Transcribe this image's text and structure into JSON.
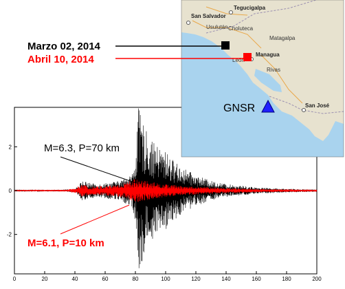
{
  "legend": {
    "black_event": "Marzo 02,  2014",
    "red_event": "Abril   10,  2014",
    "black_color": "#000000",
    "red_color": "#ff0000"
  },
  "map": {
    "station_label": "GNSR",
    "station_color": "#1f1fff",
    "sea_color": "#a9d3ee",
    "land_color": "#e7e2cf",
    "places": [
      {
        "name": "Tegucigalpa",
        "bold": true
      },
      {
        "name": "San Salvador",
        "bold": true
      },
      {
        "name": "Usulután",
        "bold": false
      },
      {
        "name": "Choluteca",
        "bold": false
      },
      {
        "name": "Matagalpa",
        "bold": false
      },
      {
        "name": "Managua",
        "bold": true
      },
      {
        "name": "León",
        "bold": false
      },
      {
        "name": "Rivas",
        "bold": false
      },
      {
        "name": "San José",
        "bold": true
      }
    ]
  },
  "chart_data": {
    "type": "line",
    "title": "",
    "xlabel": "",
    "ylabel": "",
    "xlim": [
      0,
      200
    ],
    "ylim": [
      -3.8,
      3.8
    ],
    "x_ticks": [
      0,
      20,
      40,
      60,
      80,
      100,
      120,
      140,
      160,
      180,
      200
    ],
    "y_ticks": [
      -2,
      0,
      2
    ],
    "grid": false,
    "series": [
      {
        "color": "#000000",
        "annotation": "M=6.3, P=70 km",
        "envelope": {
          "t": [
            0,
            30,
            40,
            45,
            50,
            55,
            60,
            70,
            78,
            80,
            82,
            84,
            86,
            90,
            95,
            100,
            105,
            110,
            115,
            120,
            130,
            140,
            160,
            180,
            200
          ],
          "amp": [
            0.02,
            0.03,
            0.08,
            0.45,
            0.35,
            0.3,
            0.35,
            0.45,
            0.8,
            1.5,
            3.8,
            3.3,
            2.9,
            2.3,
            2.0,
            1.8,
            1.4,
            1.1,
            0.9,
            0.7,
            0.45,
            0.3,
            0.15,
            0.08,
            0.05
          ]
        }
      },
      {
        "color": "#ff0000",
        "annotation": "M=6.1, P=10 km",
        "envelope": {
          "t": [
            0,
            35,
            40,
            45,
            50,
            60,
            70,
            75,
            80,
            85,
            90,
            100,
            110,
            120,
            140,
            160,
            180,
            200
          ],
          "amp": [
            0.03,
            0.04,
            0.12,
            0.28,
            0.2,
            0.22,
            0.3,
            0.4,
            0.55,
            0.5,
            0.4,
            0.3,
            0.22,
            0.18,
            0.12,
            0.08,
            0.06,
            0.05
          ]
        }
      }
    ]
  }
}
